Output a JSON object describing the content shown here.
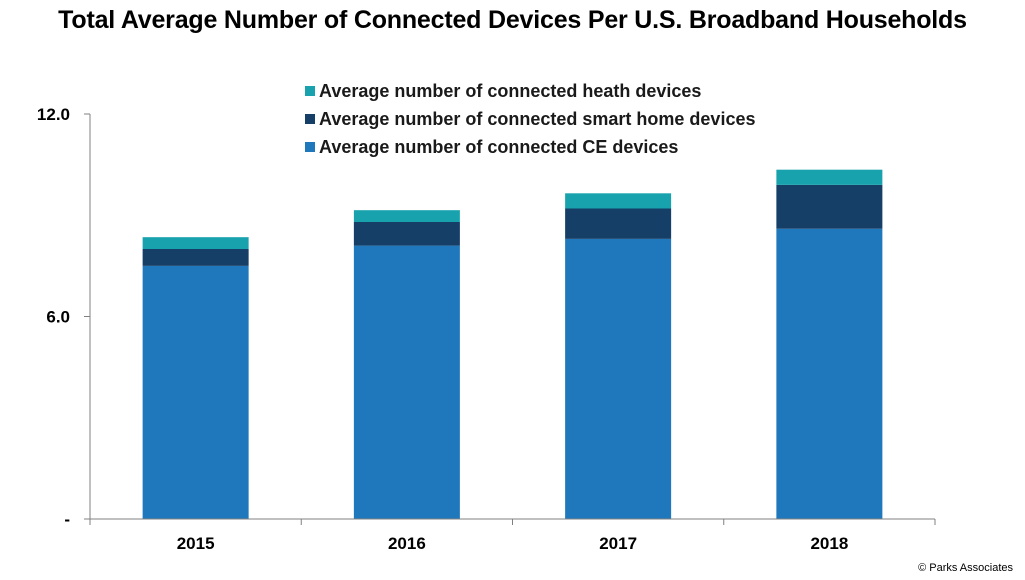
{
  "chart_data": {
    "type": "bar",
    "stacked": true,
    "title": "Total Average Number of Connected Devices Per U.S. Broadband Households",
    "categories": [
      "2015",
      "2016",
      "2017",
      "2018"
    ],
    "series": [
      {
        "name": "Average number of connected CE devices",
        "color": "#1f77bc",
        "values": [
          7.5,
          8.1,
          8.3,
          8.6
        ]
      },
      {
        "name": "Average number of connected smart home devices",
        "color": "#163f68",
        "values": [
          0.5,
          0.7,
          0.9,
          1.3
        ]
      },
      {
        "name": "Average number of connected heath devices",
        "color": "#17a2ad",
        "values": [
          0.35,
          0.35,
          0.45,
          0.45
        ]
      }
    ],
    "y_ticks": [
      {
        "value": 0,
        "label": "-"
      },
      {
        "value": 6,
        "label": "6.0"
      },
      {
        "value": 12,
        "label": "12.0"
      }
    ],
    "ylim": [
      0,
      12
    ],
    "grid": false,
    "legend_position": "top-right",
    "legend_order": [
      2,
      1,
      0
    ]
  },
  "credit": "© Parks Associates"
}
